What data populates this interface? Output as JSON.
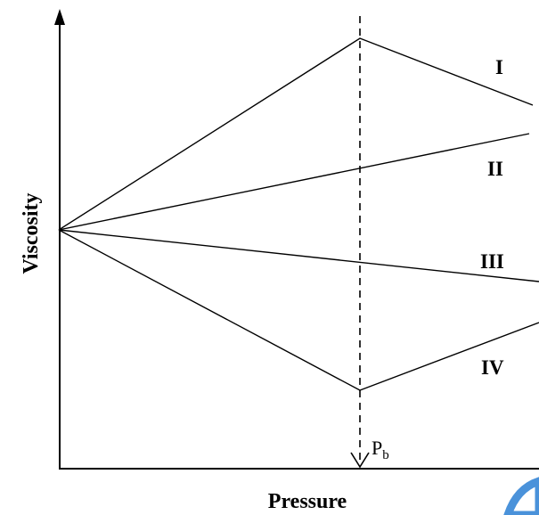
{
  "axes": {
    "x_label": "Pressure",
    "y_label": "Viscosity"
  },
  "marker": {
    "label_main": "P",
    "label_sub": "b"
  },
  "curves": [
    {
      "label": "I"
    },
    {
      "label": "II"
    },
    {
      "label": "III"
    },
    {
      "label": "IV"
    }
  ],
  "colors": {
    "lines": "#000000",
    "background": "#ffffff",
    "corner_accent": "#2a7fd4"
  }
}
